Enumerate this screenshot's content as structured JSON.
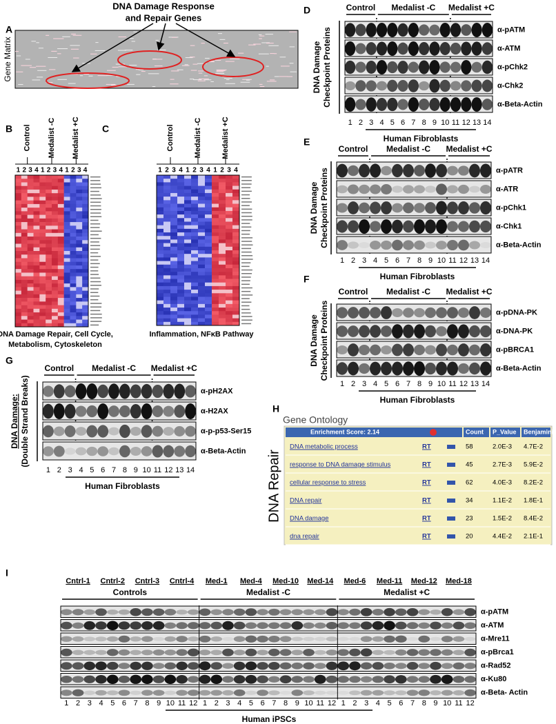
{
  "panel_a": {
    "label": "A",
    "title": [
      "DNA Damage Response",
      "and Repair Genes"
    ],
    "axis_label": "Gene Matrix"
  },
  "panel_b": {
    "label": "B",
    "groups": [
      "Control",
      "Medalist -C",
      "Medalist +C"
    ],
    "lanes": [
      "1",
      "2",
      "3",
      "4"
    ],
    "caption": [
      "DNA Damage Repair, Cell Cycle,",
      "Metabolism, Cytoskeleton"
    ]
  },
  "panel_c": {
    "label": "C",
    "groups": [
      "Control",
      "Medalist -C",
      "Medalist +C"
    ],
    "lanes": [
      "1",
      "2",
      "3",
      "4"
    ],
    "caption": [
      "Inflammation, NFκB Pathway"
    ]
  },
  "panel_d": {
    "label": "D",
    "groups": [
      "Control",
      "Medalist -C",
      "Medalist +C"
    ],
    "side_label": [
      "DNA Damage",
      "Checkpoint Proteins"
    ],
    "rows": [
      "α-pATM",
      "α-ATM",
      "α-pChk2",
      "α-Chk2",
      "α-Beta-Actin"
    ],
    "lanes": [
      "1",
      "2",
      "3",
      "4",
      "5",
      "6",
      "7",
      "8",
      "9",
      "10",
      "11",
      "12",
      "13",
      "14"
    ],
    "footer": "Human Fibroblasts"
  },
  "panel_e": {
    "label": "E",
    "groups": [
      "Control",
      "Medalist -C",
      "Medalist +C"
    ],
    "side_label": [
      "DNA Damage",
      "Checkpoint Proteins"
    ],
    "rows": [
      "α-pATR",
      "α-ATR",
      "α-pChk1",
      "α-Chk1",
      "α-Beta-Actin"
    ],
    "lanes": [
      "1",
      "2",
      "3",
      "4",
      "5",
      "6",
      "7",
      "8",
      "9",
      "10",
      "11",
      "12",
      "13",
      "14"
    ],
    "footer": "Human Fibroblasts"
  },
  "panel_f": {
    "label": "F",
    "groups": [
      "Control",
      "Medalist -C",
      "Medalist +C"
    ],
    "side_label": [
      "DNA Damage",
      "Checkpoint Proteins"
    ],
    "rows": [
      "α-pDNA-PK",
      "α-DNA-PK",
      "α-pBRCA1",
      "α-Beta-Actin"
    ],
    "lanes": [
      "1",
      "2",
      "3",
      "4",
      "5",
      "6",
      "7",
      "8",
      "9",
      "10",
      "11",
      "12",
      "13",
      "14"
    ],
    "footer": "Human Fibroblasts"
  },
  "panel_g": {
    "label": "G",
    "groups": [
      "Control",
      "Medalist -C",
      "Medalist +C"
    ],
    "side_label": [
      "DNA Damage:",
      "(Double Strand Breaks)"
    ],
    "rows": [
      "α-pH2AX",
      "α-H2AX",
      "α-p-p53-Ser15",
      "α-Beta-Actin"
    ],
    "lanes": [
      "1",
      "2",
      "3",
      "4",
      "5",
      "6",
      "7",
      "8",
      "9",
      "10",
      "11",
      "12",
      "13",
      "14"
    ],
    "footer": "Human Fibroblasts"
  },
  "panel_h": {
    "label": "H",
    "title": "Gene Ontology",
    "side_label": "DNA Repair",
    "header": {
      "score": "Enrichment Score: 2.14",
      "columns": [
        "Count",
        "P_Value",
        "Benjamini"
      ]
    },
    "rows": [
      {
        "term": "DNA metabolic process",
        "link": "RT",
        "count": 58,
        "p_value": "2.0E-3",
        "benjamini": "4.7E-2"
      },
      {
        "term": "response to DNA damage stimulus",
        "link": "RT",
        "count": 45,
        "p_value": "2.7E-3",
        "benjamini": "5.9E-2"
      },
      {
        "term": "cellular response to stress",
        "link": "RT",
        "count": 62,
        "p_value": "4.0E-3",
        "benjamini": "8.2E-2"
      },
      {
        "term": "DNA repair",
        "link": "RT",
        "count": 34,
        "p_value": "1.1E-2",
        "benjamini": "1.8E-1"
      },
      {
        "term": "DNA damage",
        "link": "RT",
        "count": 23,
        "p_value": "1.5E-2",
        "benjamini": "8.4E-2"
      },
      {
        "term": "dna repair",
        "link": "RT",
        "count": 20,
        "p_value": "4.4E-2",
        "benjamini": "2.1E-1"
      }
    ]
  },
  "panel_i": {
    "label": "I",
    "lines": [
      "Cntrl-1",
      "Cntrl-2",
      "Cntrl-3",
      "Cntrl-4",
      "Med-1",
      "Med-4",
      "Med-10",
      "Med-14",
      "Med-6",
      "Med-11",
      "Med-12",
      "Med-18"
    ],
    "groups": [
      "Controls",
      "Medalist -C",
      "Medalist +C"
    ],
    "rows": [
      "α-pATM",
      "α-ATM",
      "α-Mre11",
      "α-pBrca1",
      "α-Rad52",
      "α-Ku80",
      "α-Beta- Actin"
    ],
    "lanes": [
      "1",
      "2",
      "3",
      "4",
      "5",
      "6",
      "7",
      "8",
      "9",
      "10",
      "11",
      "12"
    ],
    "footer": "Human iPSCs"
  }
}
